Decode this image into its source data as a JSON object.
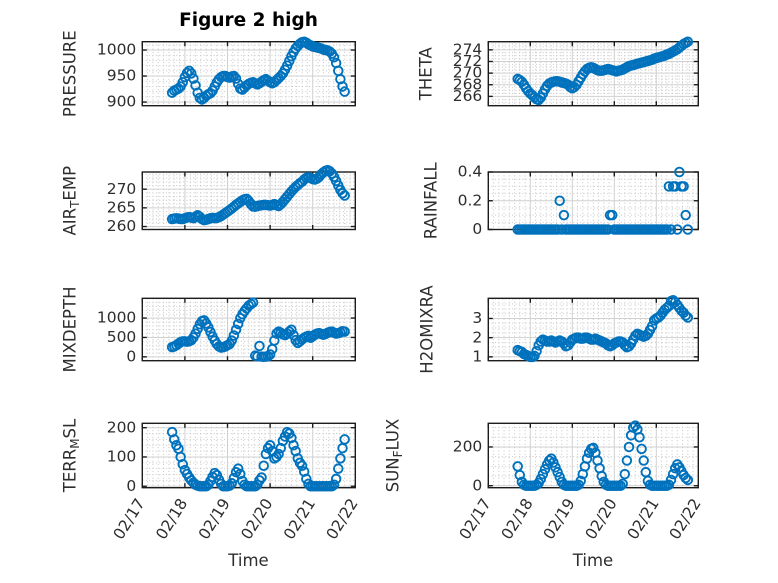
{
  "figure": {
    "title": "Figure 2 high",
    "xlabel": "Time",
    "background": "#ffffff",
    "marker": {
      "shape": "circle",
      "color": "#0072BD"
    },
    "axis_color": "#1c1c1c",
    "text_color": "#2e2e2e",
    "grid_color": "#d0d0d0",
    "minor_grid_color": "#c6c6c6"
  },
  "time_axis": {
    "label": "Time",
    "tick_labels": [
      "02/17",
      "02/18",
      "02/19",
      "02/20",
      "02/21",
      "02/22"
    ],
    "range_days": [
      0,
      5
    ],
    "minor_step_days": 0.125,
    "t_days": [
      0.7,
      0.75,
      0.8,
      0.85,
      0.9,
      0.95,
      1,
      1.05,
      1.1,
      1.15,
      1.2,
      1.25,
      1.3,
      1.35,
      1.4,
      1.45,
      1.5,
      1.55,
      1.6,
      1.65,
      1.7,
      1.75,
      1.8,
      1.85,
      1.9,
      1.95,
      2,
      2.05,
      2.1,
      2.15,
      2.2,
      2.25,
      2.3,
      2.35,
      2.4,
      2.45,
      2.5,
      2.55,
      2.6,
      2.65,
      2.7,
      2.75,
      2.8,
      2.85,
      2.9,
      2.95,
      3,
      3.05,
      3.1,
      3.15,
      3.2,
      3.25,
      3.3,
      3.35,
      3.4,
      3.45,
      3.5,
      3.55,
      3.6,
      3.65,
      3.7,
      3.75,
      3.8,
      3.85,
      3.9,
      3.95,
      4,
      4.05,
      4.1,
      4.15,
      4.2,
      4.25,
      4.3,
      4.35,
      4.4,
      4.45,
      4.5,
      4.55,
      4.6,
      4.65,
      4.7,
      4.75
    ]
  },
  "chart_data": [
    {
      "type": "scatter",
      "name": "PRESSURE",
      "ylabel": "PRESSURE",
      "yticks": [
        900,
        950,
        1000
      ],
      "ytick_labels": [
        "900",
        "950",
        "1000"
      ],
      "ylim": [
        893,
        1016
      ],
      "y_minor_step": 10,
      "grid": true,
      "legend": false,
      "values": [
        918,
        922,
        924,
        926,
        930,
        938,
        948,
        956,
        960,
        955,
        945,
        932,
        918,
        908,
        905,
        908,
        912,
        915,
        917,
        922,
        930,
        938,
        944,
        948,
        950,
        950,
        948,
        947,
        949,
        950,
        945,
        935,
        926,
        924,
        928,
        932,
        935,
        937,
        938,
        936,
        934,
        936,
        939,
        942,
        944,
        941,
        938,
        936,
        938,
        942,
        946,
        950,
        955,
        962,
        970,
        979,
        988,
        996,
        1003,
        1008,
        1012,
        1015,
        1016,
        1014,
        1011,
        1009,
        1007,
        1006,
        1005,
        1004,
        1003,
        1001,
        1000,
        999,
        997,
        993,
        986,
        975,
        960,
        944,
        930,
        920
      ]
    },
    {
      "type": "scatter",
      "name": "THETA",
      "ylabel": "THETA",
      "yticks": [
        266,
        268,
        270,
        272,
        274
      ],
      "ytick_labels": [
        "266",
        "268",
        "270",
        "272",
        "274"
      ],
      "ylim": [
        264.4,
        275.4
      ],
      "y_minor_step": 0.5,
      "grid": true,
      "legend": false,
      "values": [
        269.0,
        268.8,
        268.5,
        268.0,
        267.4,
        266.9,
        266.5,
        266.2,
        265.8,
        265.5,
        265.4,
        265.8,
        266.5,
        267.2,
        267.8,
        268.2,
        268.4,
        268.5,
        268.6,
        268.6,
        268.5,
        268.4,
        268.3,
        268.2,
        268.0,
        267.6,
        267.4,
        267.6,
        268.0,
        268.6,
        269.2,
        269.8,
        270.3,
        270.7,
        270.9,
        271.0,
        270.9,
        270.7,
        270.5,
        270.4,
        270.4,
        270.5,
        270.6,
        270.7,
        270.6,
        270.5,
        270.4,
        270.3,
        270.4,
        270.5,
        270.6,
        270.8,
        271.0,
        271.2,
        271.3,
        271.4,
        271.5,
        271.6,
        271.7,
        271.8,
        271.9,
        272.0,
        272.1,
        272.2,
        272.3,
        272.5,
        272.6,
        272.7,
        272.8,
        272.9,
        273.0,
        273.2,
        273.3,
        273.5,
        273.7,
        273.9,
        274.1,
        274.4,
        274.7,
        275.0,
        275.2,
        275.4
      ]
    },
    {
      "type": "scatter",
      "name": "AIR_TEMP",
      "ylabel": "AIR_TEMP",
      "yticks": [
        260,
        265,
        270
      ],
      "ytick_labels": [
        "260",
        "265",
        "270"
      ],
      "ylim": [
        259.2,
        274.6
      ],
      "y_minor_step": 1,
      "grid": true,
      "legend": false,
      "values": [
        262.0,
        262.1,
        262.2,
        262.1,
        262.0,
        262.0,
        262.2,
        262.4,
        262.5,
        262.4,
        262.2,
        262.6,
        263.0,
        262.6,
        262.0,
        261.7,
        261.8,
        262.0,
        262.2,
        262.3,
        262.2,
        262.3,
        262.5,
        262.8,
        263.2,
        263.6,
        264.0,
        264.4,
        264.8,
        265.3,
        265.8,
        266.2,
        266.6,
        267.0,
        267.3,
        267.4,
        266.8,
        266.0,
        265.4,
        265.3,
        265.5,
        265.6,
        265.7,
        265.8,
        265.8,
        265.7,
        265.6,
        265.8,
        266.0,
        265.7,
        265.5,
        266.0,
        266.6,
        267.3,
        268.0,
        268.7,
        269.4,
        270.0,
        270.6,
        271.1,
        271.6,
        272.0,
        272.6,
        273.0,
        273.2,
        273.0,
        272.7,
        272.6,
        272.8,
        273.3,
        274.0,
        274.5,
        274.9,
        275.1,
        274.8,
        274.2,
        273.3,
        272.2,
        271.0,
        269.8,
        268.9,
        268.3
      ]
    },
    {
      "type": "scatter",
      "name": "RAINFALL",
      "ylabel": "RAINFALL",
      "yticks": [
        0,
        0.2,
        0.4
      ],
      "ytick_labels": [
        "0",
        "0.2",
        "0.4"
      ],
      "ylim": [
        0,
        0.4
      ],
      "y_minor_step": 0.05,
      "grid": true,
      "legend": false,
      "values": [
        0,
        0,
        0,
        0,
        0,
        0,
        0,
        0,
        0,
        0,
        0,
        0,
        0,
        0,
        0,
        0,
        0,
        0,
        0,
        0,
        0.2,
        0,
        0.1,
        0,
        0,
        0,
        0,
        0,
        0,
        0,
        0,
        0,
        0,
        0,
        0,
        0,
        0,
        0,
        0,
        0,
        0,
        0,
        0,
        0,
        0.1,
        0.1,
        0,
        0,
        0,
        0,
        0,
        0,
        0,
        0,
        0,
        0,
        0,
        0,
        0,
        0,
        0,
        0,
        0,
        0,
        0,
        0,
        0,
        0,
        0,
        0,
        0,
        0,
        0.3,
        0,
        0.3,
        0.3,
        0,
        0.4,
        0.3,
        0.3,
        0.1,
        0
      ]
    },
    {
      "type": "scatter",
      "name": "MIXDEPTH",
      "ylabel": "MIXDEPTH",
      "yticks": [
        0,
        500,
        1000
      ],
      "ytick_labels": [
        "0",
        "500",
        "1000"
      ],
      "ylim": [
        -100,
        1510
      ],
      "y_minor_step": 100,
      "grid": true,
      "legend": false,
      "values": [
        250,
        270,
        300,
        340,
        380,
        400,
        400,
        390,
        400,
        430,
        500,
        600,
        720,
        840,
        920,
        940,
        860,
        760,
        640,
        520,
        420,
        330,
        270,
        240,
        250,
        270,
        300,
        330,
        420,
        550,
        700,
        850,
        1000,
        1100,
        1180,
        1250,
        1320,
        1360,
        1400,
        30,
        10,
        280,
        5,
        0,
        5,
        15,
        60,
        200,
        420,
        600,
        650,
        620,
        580,
        560,
        600,
        650,
        700,
        560,
        430,
        360,
        400,
        450,
        490,
        520,
        540,
        490,
        530,
        570,
        600,
        610,
        590,
        570,
        590,
        620,
        640,
        650,
        620,
        600,
        610,
        630,
        660,
        650
      ]
    },
    {
      "type": "scatter",
      "name": "H2OMIXRA",
      "ylabel": "H2OMIXRA",
      "yticks": [
        1,
        2,
        3
      ],
      "ytick_labels": [
        "1",
        "2",
        "3"
      ],
      "ylim": [
        0.8,
        4.05
      ],
      "y_minor_step": 0.25,
      "grid": true,
      "legend": false,
      "values": [
        1.35,
        1.3,
        1.25,
        1.15,
        1.1,
        1.05,
        1.0,
        1.0,
        1.05,
        1.3,
        1.6,
        1.8,
        1.9,
        1.85,
        1.8,
        1.8,
        1.85,
        1.8,
        1.75,
        1.8,
        1.85,
        1.8,
        1.7,
        1.55,
        1.6,
        1.75,
        1.9,
        1.95,
        2.0,
        2.0,
        1.95,
        1.95,
        2.0,
        2.0,
        1.95,
        1.9,
        1.9,
        1.95,
        1.9,
        1.85,
        1.8,
        1.75,
        1.7,
        1.6,
        1.55,
        1.6,
        1.7,
        1.75,
        1.8,
        1.8,
        1.75,
        1.6,
        1.5,
        1.55,
        1.7,
        1.9,
        2.1,
        2.2,
        2.15,
        2.1,
        2.05,
        2.1,
        2.2,
        2.4,
        2.6,
        2.9,
        3.0,
        3.05,
        3.15,
        3.3,
        3.45,
        3.55,
        3.65,
        3.9,
        3.95,
        3.85,
        3.7,
        3.55,
        3.4,
        3.3,
        3.15,
        3.05
      ]
    },
    {
      "type": "scatter",
      "name": "TERR_MSL",
      "ylabel": "TERR_MSL",
      "yticks": [
        0,
        100,
        200
      ],
      "ytick_labels": [
        "0",
        "100",
        "200"
      ],
      "ylim": [
        -5,
        215
      ],
      "y_minor_step": 20,
      "grid": true,
      "legend": false,
      "values": [
        185,
        160,
        140,
        128,
        100,
        75,
        55,
        42,
        30,
        20,
        12,
        5,
        2,
        0,
        0,
        0,
        0,
        5,
        18,
        32,
        45,
        38,
        22,
        8,
        0,
        0,
        0,
        2,
        10,
        28,
        48,
        60,
        42,
        18,
        5,
        0,
        0,
        0,
        0,
        0,
        5,
        20,
        30,
        70,
        110,
        130,
        140,
        120,
        95,
        100,
        110,
        130,
        155,
        170,
        185,
        180,
        165,
        140,
        120,
        95,
        80,
        70,
        50,
        25,
        8,
        0,
        0,
        0,
        0,
        0,
        0,
        0,
        0,
        0,
        0,
        0,
        5,
        25,
        60,
        95,
        130,
        160
      ]
    },
    {
      "type": "scatter",
      "name": "SUN_FLUX",
      "ylabel": "SUN_FLUX",
      "yticks": [
        0,
        200
      ],
      "ytick_labels": [
        "0",
        "200"
      ],
      "ylim": [
        -10,
        322
      ],
      "y_minor_step": 50,
      "grid": true,
      "legend": false,
      "values": [
        100,
        55,
        20,
        5,
        0,
        0,
        0,
        0,
        0,
        5,
        15,
        35,
        60,
        85,
        110,
        130,
        140,
        120,
        95,
        70,
        45,
        20,
        5,
        0,
        0,
        0,
        0,
        0,
        0,
        5,
        25,
        60,
        100,
        140,
        170,
        190,
        195,
        170,
        130,
        90,
        50,
        20,
        5,
        0,
        0,
        0,
        0,
        0,
        0,
        0,
        10,
        60,
        130,
        200,
        260,
        300,
        310,
        290,
        250,
        190,
        130,
        70,
        25,
        5,
        0,
        0,
        0,
        0,
        0,
        0,
        0,
        0,
        5,
        30,
        60,
        90,
        110,
        95,
        75,
        55,
        40,
        30
      ]
    }
  ]
}
